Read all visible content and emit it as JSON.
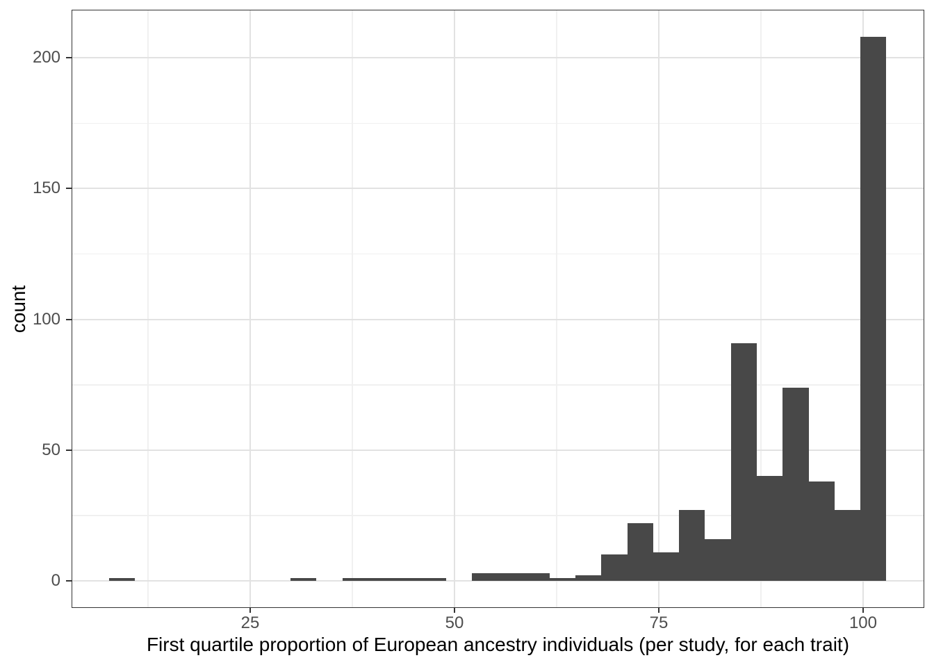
{
  "chart_data": {
    "type": "bar",
    "subtype": "histogram",
    "title": "",
    "xlabel": "First quartile proportion of European ancestry individuals (per study, for each trait)",
    "ylabel": "count",
    "x_ticks": [
      25,
      50,
      75,
      100
    ],
    "x_tick_labels": [
      "25",
      "50",
      "75",
      "100"
    ],
    "y_ticks": [
      0,
      50,
      100,
      150,
      200
    ],
    "y_tick_labels": [
      "0",
      "50",
      "100",
      "150",
      "200"
    ],
    "x_minor_gridlines": [
      12.5,
      37.5,
      62.5,
      87.5
    ],
    "y_minor_gridlines": [
      25,
      75,
      125,
      175
    ],
    "x_domain": [
      3.147,
      107.483
    ],
    "y_domain": [
      -10.36,
      218.42
    ],
    "binwidth": 3.17,
    "grid": true,
    "legend": "none",
    "bins": [
      {
        "x0": 7.74,
        "x1": 10.91,
        "count": 1
      },
      {
        "x0": 10.91,
        "x1": 14.08,
        "count": 0
      },
      {
        "x0": 14.08,
        "x1": 17.25,
        "count": 0
      },
      {
        "x0": 17.25,
        "x1": 20.42,
        "count": 0
      },
      {
        "x0": 20.42,
        "x1": 23.59,
        "count": 0
      },
      {
        "x0": 23.59,
        "x1": 26.76,
        "count": 0
      },
      {
        "x0": 26.76,
        "x1": 29.93,
        "count": 0
      },
      {
        "x0": 29.93,
        "x1": 33.1,
        "count": 1
      },
      {
        "x0": 33.1,
        "x1": 36.27,
        "count": 0
      },
      {
        "x0": 36.27,
        "x1": 39.44,
        "count": 1
      },
      {
        "x0": 39.44,
        "x1": 42.61,
        "count": 1
      },
      {
        "x0": 42.61,
        "x1": 45.78,
        "count": 1
      },
      {
        "x0": 45.78,
        "x1": 48.95,
        "count": 1
      },
      {
        "x0": 48.95,
        "x1": 52.12,
        "count": 0
      },
      {
        "x0": 52.12,
        "x1": 55.29,
        "count": 3
      },
      {
        "x0": 55.29,
        "x1": 58.46,
        "count": 3
      },
      {
        "x0": 58.46,
        "x1": 61.63,
        "count": 3
      },
      {
        "x0": 61.63,
        "x1": 64.8,
        "count": 1
      },
      {
        "x0": 64.8,
        "x1": 67.97,
        "count": 2
      },
      {
        "x0": 67.97,
        "x1": 71.14,
        "count": 10
      },
      {
        "x0": 71.14,
        "x1": 74.31,
        "count": 22
      },
      {
        "x0": 74.31,
        "x1": 77.48,
        "count": 11
      },
      {
        "x0": 77.48,
        "x1": 80.65,
        "count": 27
      },
      {
        "x0": 80.65,
        "x1": 83.82,
        "count": 16
      },
      {
        "x0": 83.82,
        "x1": 86.99,
        "count": 91
      },
      {
        "x0": 86.99,
        "x1": 90.16,
        "count": 40
      },
      {
        "x0": 90.16,
        "x1": 93.33,
        "count": 74
      },
      {
        "x0": 93.33,
        "x1": 96.5,
        "count": 38
      },
      {
        "x0": 96.5,
        "x1": 99.67,
        "count": 27
      },
      {
        "x0": 99.67,
        "x1": 102.84,
        "count": 208
      }
    ],
    "colors": {
      "bar_fill": "#484848",
      "panel_background": "#ffffff",
      "panel_border": "#333333",
      "grid_major": "#e2e2e2",
      "grid_minor": "#f0f0f0",
      "tick_mark": "#333333",
      "tick_text": "#4d4d4d",
      "title_text": "#000000"
    }
  }
}
